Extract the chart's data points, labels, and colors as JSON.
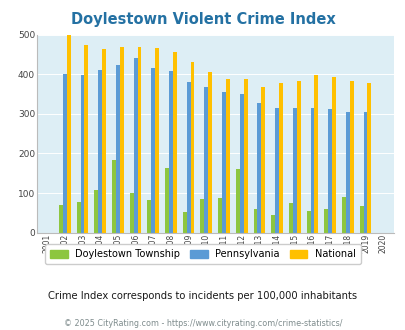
{
  "title": "Doylestown Violent Crime Index",
  "years": [
    "2001",
    "2002",
    "2003",
    "2004",
    "2005",
    "2006",
    "2007",
    "2008",
    "2009",
    "2010",
    "2011",
    "2012",
    "2013",
    "2014",
    "2015",
    "2016",
    "2017",
    "2018",
    "2019",
    "2020"
  ],
  "doylestown": [
    0,
    70,
    78,
    108,
    183,
    100,
    83,
    163,
    52,
    85,
    87,
    160,
    60,
    44,
    75,
    55,
    60,
    90,
    68,
    0
  ],
  "pennsylvania": [
    0,
    400,
    399,
    410,
    424,
    442,
    417,
    408,
    381,
    367,
    355,
    350,
    328,
    315,
    314,
    315,
    311,
    305,
    305,
    0
  ],
  "national": [
    0,
    500,
    475,
    463,
    469,
    469,
    467,
    455,
    431,
    405,
    389,
    389,
    368,
    377,
    384,
    397,
    394,
    383,
    379,
    0
  ],
  "colors": {
    "doylestown": "#8dc63f",
    "pennsylvania": "#5b9bd5",
    "national": "#ffc000",
    "background": "#ddeef5"
  },
  "ylim": [
    0,
    500
  ],
  "subtitle": "Crime Index corresponds to incidents per 100,000 inhabitants",
  "footer": "© 2025 CityRating.com - https://www.cityrating.com/crime-statistics/",
  "legend_labels": [
    "Doylestown Township",
    "Pennsylvania",
    "National"
  ],
  "title_color": "#2471a3",
  "subtitle_color": "#1a1a1a",
  "footer_color": "#7f8c8d",
  "bar_width": 0.22
}
